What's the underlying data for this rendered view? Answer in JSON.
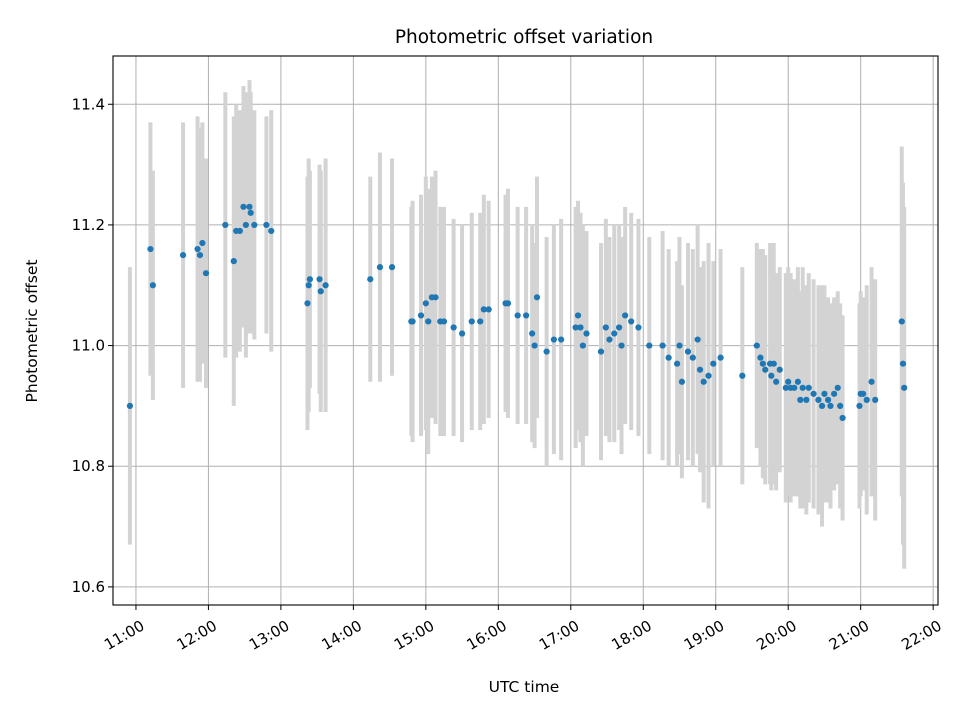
{
  "chart_data": {
    "type": "scatter",
    "title": "Photometric offset variation",
    "xlabel": "UTC time",
    "ylabel": "Photometric offset",
    "x_unit": "UTC time of day",
    "xlim": [
      "10:41",
      "22:04"
    ],
    "ylim": [
      10.57,
      11.48
    ],
    "x_ticks": [
      "11:00",
      "12:00",
      "13:00",
      "14:00",
      "15:00",
      "16:00",
      "17:00",
      "18:00",
      "19:00",
      "20:00",
      "21:00",
      "22:00"
    ],
    "y_ticks": [
      10.6,
      10.8,
      11.0,
      11.2,
      11.4
    ],
    "y_tick_labels": [
      "10.6",
      "10.8",
      "11.0",
      "11.2",
      "11.4"
    ],
    "grid": true,
    "legend": false,
    "marker_color": "#1f77b4",
    "errorbar_color": "#d3d3d3",
    "series": [
      {
        "x": [
          "10:55",
          "11:12",
          "11:14",
          "11:39",
          "11:51",
          "11:53",
          "11:55",
          "11:58",
          "12:14",
          "12:21",
          "12:23",
          "12:26",
          "12:29",
          "12:31",
          "12:34",
          "12:35",
          "12:38",
          "12:48",
          "12:52",
          "13:22",
          "13:23",
          "13:24",
          "13:32",
          "13:33",
          "13:37",
          "14:14",
          "14:22",
          "14:32",
          "14:48",
          "14:49",
          "14:56",
          "15:00",
          "15:02",
          "15:05",
          "15:08",
          "15:12",
          "15:15",
          "15:23",
          "15:30",
          "15:38",
          "15:45",
          "15:48",
          "15:52",
          "16:06",
          "16:08",
          "16:16",
          "16:23",
          "16:28",
          "16:30",
          "16:32",
          "16:40",
          "16:46",
          "16:52",
          "17:04",
          "17:06",
          "17:08",
          "17:10",
          "17:13",
          "17:25",
          "17:29",
          "17:32",
          "17:36",
          "17:40",
          "17:42",
          "17:45",
          "17:50",
          "17:56",
          "18:05",
          "18:16",
          "18:21",
          "18:28",
          "18:30",
          "18:32",
          "18:37",
          "18:41",
          "18:45",
          "18:47",
          "18:50",
          "18:54",
          "18:58",
          "19:04",
          "19:22",
          "19:34",
          "19:37",
          "19:39",
          "19:41",
          "19:45",
          "19:46",
          "19:48",
          "19:50",
          "19:53",
          "19:58",
          "20:00",
          "20:02",
          "20:05",
          "20:08",
          "20:10",
          "20:12",
          "20:15",
          "20:17",
          "20:21",
          "20:25",
          "20:28",
          "20:30",
          "20:33",
          "20:35",
          "20:38",
          "20:41",
          "20:43",
          "20:45",
          "20:59",
          "21:00",
          "21:02",
          "21:05",
          "21:09",
          "21:12",
          "21:34",
          "21:35",
          "21:36"
        ],
        "y": [
          10.9,
          11.16,
          11.1,
          11.15,
          11.16,
          11.15,
          11.17,
          11.12,
          11.2,
          11.14,
          11.19,
          11.19,
          11.23,
          11.2,
          11.23,
          11.22,
          11.2,
          11.2,
          11.19,
          11.07,
          11.1,
          11.11,
          11.11,
          11.09,
          11.1,
          11.11,
          11.13,
          11.13,
          11.04,
          11.04,
          11.05,
          11.07,
          11.04,
          11.08,
          11.08,
          11.04,
          11.04,
          11.03,
          11.02,
          11.04,
          11.04,
          11.06,
          11.06,
          11.07,
          11.07,
          11.05,
          11.05,
          11.02,
          11.0,
          11.08,
          10.99,
          11.01,
          11.01,
          11.03,
          11.05,
          11.03,
          11.0,
          11.02,
          10.99,
          11.03,
          11.01,
          11.02,
          11.03,
          11.0,
          11.05,
          11.04,
          11.03,
          11.0,
          11.0,
          10.98,
          10.97,
          11.0,
          10.94,
          10.99,
          10.98,
          11.01,
          10.96,
          10.94,
          10.95,
          10.97,
          10.98,
          10.95,
          11.0,
          10.98,
          10.97,
          10.96,
          10.97,
          10.95,
          10.97,
          10.94,
          10.96,
          10.93,
          10.94,
          10.93,
          10.93,
          10.94,
          10.91,
          10.93,
          10.91,
          10.93,
          10.92,
          10.91,
          10.9,
          10.92,
          10.91,
          10.9,
          10.92,
          10.93,
          10.9,
          10.88,
          10.9,
          10.92,
          10.92,
          10.91,
          10.94,
          10.91,
          11.04,
          10.97,
          10.93
        ],
        "err": [
          0.23,
          0.21,
          0.19,
          0.22,
          0.22,
          0.21,
          0.2,
          0.19,
          0.22,
          0.24,
          0.21,
          0.2,
          0.2,
          0.22,
          0.21,
          0.2,
          0.19,
          0.18,
          0.2,
          0.21,
          0.21,
          0.18,
          0.19,
          0.2,
          0.21,
          0.17,
          0.19,
          0.18,
          0.19,
          0.2,
          0.2,
          0.21,
          0.22,
          0.2,
          0.21,
          0.19,
          0.19,
          0.18,
          0.18,
          0.18,
          0.18,
          0.19,
          0.18,
          0.18,
          0.19,
          0.18,
          0.18,
          0.18,
          0.17,
          0.2,
          0.19,
          0.19,
          0.2,
          0.2,
          0.19,
          0.19,
          0.2,
          0.17,
          0.18,
          0.18,
          0.17,
          0.18,
          0.17,
          0.18,
          0.18,
          0.18,
          0.18,
          0.18,
          0.19,
          0.18,
          0.17,
          0.18,
          0.16,
          0.18,
          0.18,
          0.19,
          0.17,
          0.2,
          0.22,
          0.17,
          0.18,
          0.18,
          0.17,
          0.18,
          0.19,
          0.19,
          0.2,
          0.19,
          0.2,
          0.18,
          0.17,
          0.19,
          0.19,
          0.19,
          0.18,
          0.19,
          0.18,
          0.2,
          0.19,
          0.19,
          0.19,
          0.19,
          0.2,
          0.18,
          0.17,
          0.17,
          0.16,
          0.16,
          0.17,
          0.17,
          0.17,
          0.17,
          0.16,
          0.19,
          0.19,
          0.2,
          0.29,
          0.3,
          0.3
        ]
      }
    ]
  }
}
